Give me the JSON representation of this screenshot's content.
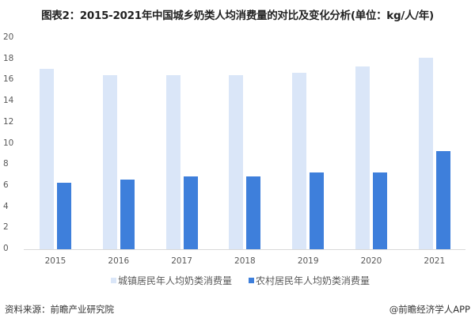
{
  "header": {
    "title": "图表2：2015-2021年中国城乡奶类人均消费量的对比及变化分析(单位：kg/人/年)"
  },
  "footer": {
    "source": "资料来源：前瞻产业研究院",
    "credit": "@前瞻经济学人APP"
  },
  "colors": {
    "urban": "#DAE6F8",
    "rural": "#3E7FDB"
  },
  "chart_data": {
    "type": "bar",
    "title": "图表2：2015-2021年中国城乡奶类人均消费量的对比及变化分析(单位：kg/人/年)",
    "xlabel": "",
    "ylabel": "kg/人/年",
    "categories": [
      "2015",
      "2016",
      "2017",
      "2018",
      "2019",
      "2020",
      "2021"
    ],
    "series": [
      {
        "name": "城镇居民年人均奶类消费量",
        "color": "#DAE6F8",
        "values": [
          17.1,
          16.5,
          16.5,
          16.5,
          16.7,
          17.3,
          18.1
        ]
      },
      {
        "name": "农村居民年人均奶类消费量",
        "color": "#3E7FDB",
        "values": [
          6.3,
          6.6,
          6.9,
          6.9,
          7.3,
          7.3,
          9.3
        ]
      }
    ],
    "ylim": [
      0,
      20
    ],
    "yticks": [
      "0",
      "2",
      "4",
      "6",
      "8",
      "10",
      "12",
      "14",
      "16",
      "18",
      "20"
    ],
    "grid": false,
    "legend_position": "bottom"
  }
}
